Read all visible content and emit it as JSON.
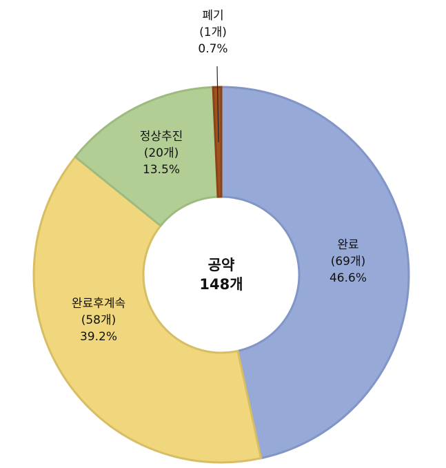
{
  "chart_data": {
    "type": "pie",
    "donut": true,
    "center_label": {
      "line1": "공약",
      "line2": "148개"
    },
    "slices": [
      {
        "name": "완료",
        "count": "(69개)",
        "percent": "46.6%",
        "value": 46.6,
        "color": "#97a9d6",
        "stroke": "#8195c6"
      },
      {
        "name": "완료후계속",
        "count": "(58개)",
        "percent": "39.2%",
        "value": 39.2,
        "color": "#f0d67c",
        "stroke": "#d8be62"
      },
      {
        "name": "정상추진",
        "count": "(20개)",
        "percent": "13.5%",
        "value": 13.5,
        "color": "#b3ce95",
        "stroke": "#9dbb7e"
      },
      {
        "name": "폐기",
        "count": "(1개)",
        "percent": "0.7%",
        "value": 0.7,
        "color": "#a0521f",
        "stroke": "#8a4418"
      }
    ],
    "start_angle": "12 o'clock",
    "direction": "clockwise"
  }
}
